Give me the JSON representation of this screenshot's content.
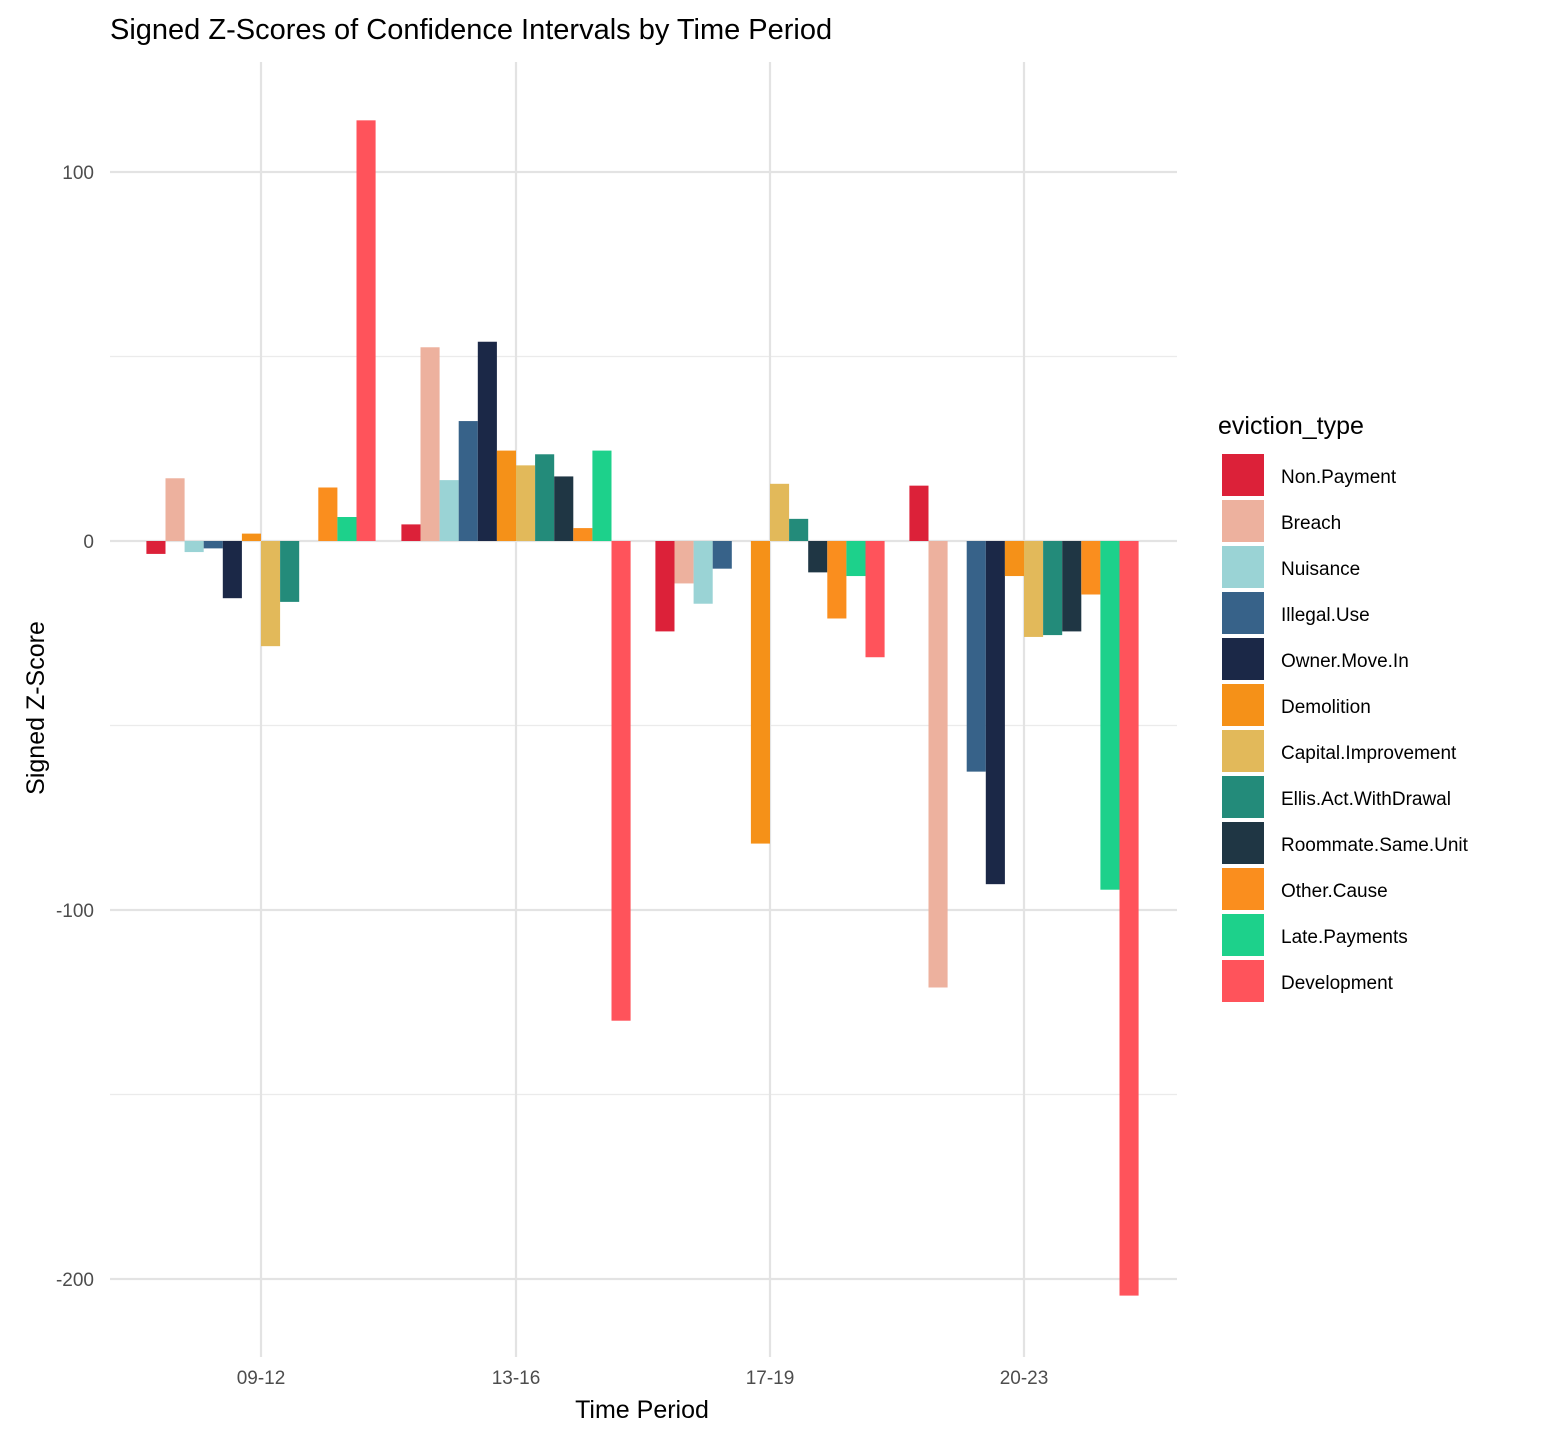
{
  "chart_data": {
    "type": "bar",
    "title": "Signed Z-Scores of Confidence Intervals by Time Period",
    "xlabel": "Time Period",
    "ylabel": "Signed Z-Score",
    "ylim": [
      -220,
      130
    ],
    "yticks": [
      100,
      0,
      -100,
      -200
    ],
    "grid": true,
    "legend_position": "right",
    "legend_title": "eviction_type",
    "categories": [
      "09-12",
      "13-16",
      "17-19",
      "20-23"
    ],
    "series": [
      {
        "name": "Non.Payment",
        "color": "#DC2139",
        "values": [
          -3.5,
          4.5,
          -24.5,
          15
        ]
      },
      {
        "name": "Breach",
        "color": "#EDB19E",
        "values": [
          17,
          52.5,
          -11.5,
          -121
        ]
      },
      {
        "name": "Nuisance",
        "color": "#9AD3D5",
        "values": [
          -3,
          16.5,
          -17,
          0
        ]
      },
      {
        "name": "Illegal.Use",
        "color": "#376289",
        "values": [
          -2,
          32.5,
          -7.5,
          -62.5
        ]
      },
      {
        "name": "Owner.Move.In",
        "color": "#1B2847",
        "values": [
          -15.5,
          54,
          0,
          -93
        ]
      },
      {
        "name": "Demolition",
        "color": "#F59118",
        "values": [
          2,
          24.5,
          -82,
          -9.5
        ]
      },
      {
        "name": "Capital.Improvement",
        "color": "#E2B95A",
        "values": [
          -28.5,
          20.5,
          15.5,
          -26
        ]
      },
      {
        "name": "Ellis.Act.WithDrawal",
        "color": "#238B7A",
        "values": [
          -16.5,
          23.5,
          6,
          -25.5
        ]
      },
      {
        "name": "Roommate.Same.Unit",
        "color": "#1F3644",
        "values": [
          0,
          17.5,
          -8.5,
          -24.5
        ]
      },
      {
        "name": "Other.Cause",
        "color": "#FA8E1E",
        "values": [
          14.5,
          3.5,
          -21,
          -14.5
        ]
      },
      {
        "name": "Late.Payments",
        "color": "#1DD18B",
        "values": [
          6.5,
          24.5,
          -9.5,
          -94.5
        ]
      },
      {
        "name": "Development",
        "color": "#FF535B",
        "values": [
          114,
          -130,
          -31.5,
          -204.5
        ]
      }
    ]
  }
}
